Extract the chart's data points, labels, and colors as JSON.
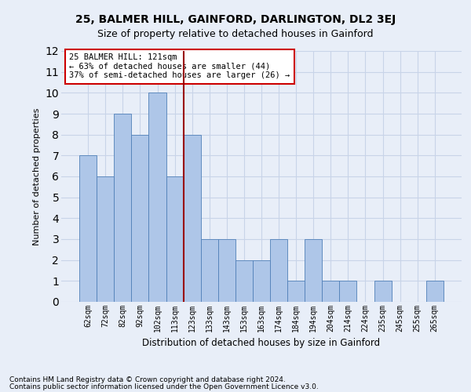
{
  "title": "25, BALMER HILL, GAINFORD, DARLINGTON, DL2 3EJ",
  "subtitle": "Size of property relative to detached houses in Gainford",
  "xlabel": "Distribution of detached houses by size in Gainford",
  "ylabel": "Number of detached properties",
  "footnote1": "Contains HM Land Registry data © Crown copyright and database right 2024.",
  "footnote2": "Contains public sector information licensed under the Open Government Licence v3.0.",
  "categories": [
    "62sqm",
    "72sqm",
    "82sqm",
    "92sqm",
    "102sqm",
    "113sqm",
    "123sqm",
    "133sqm",
    "143sqm",
    "153sqm",
    "163sqm",
    "174sqm",
    "184sqm",
    "194sqm",
    "204sqm",
    "214sqm",
    "224sqm",
    "235sqm",
    "245sqm",
    "255sqm",
    "265sqm"
  ],
  "values": [
    7,
    6,
    9,
    8,
    10,
    6,
    8,
    3,
    3,
    2,
    2,
    3,
    1,
    3,
    1,
    1,
    0,
    1,
    0,
    0,
    1
  ],
  "bar_color": "#aec6e8",
  "bar_edge_color": "#5080b8",
  "grid_color": "#c8d4e8",
  "background_color": "#e8eef8",
  "vline_x_index": 6,
  "vline_color": "#990000",
  "annotation_text": "25 BALMER HILL: 121sqm\n← 63% of detached houses are smaller (44)\n37% of semi-detached houses are larger (26) →",
  "annotation_box_color": "#ffffff",
  "annotation_box_edge": "#cc0000",
  "ylim": [
    0,
    12
  ],
  "yticks": [
    0,
    1,
    2,
    3,
    4,
    5,
    6,
    7,
    8,
    9,
    10,
    11,
    12
  ],
  "title_fontsize": 10,
  "subtitle_fontsize": 9
}
